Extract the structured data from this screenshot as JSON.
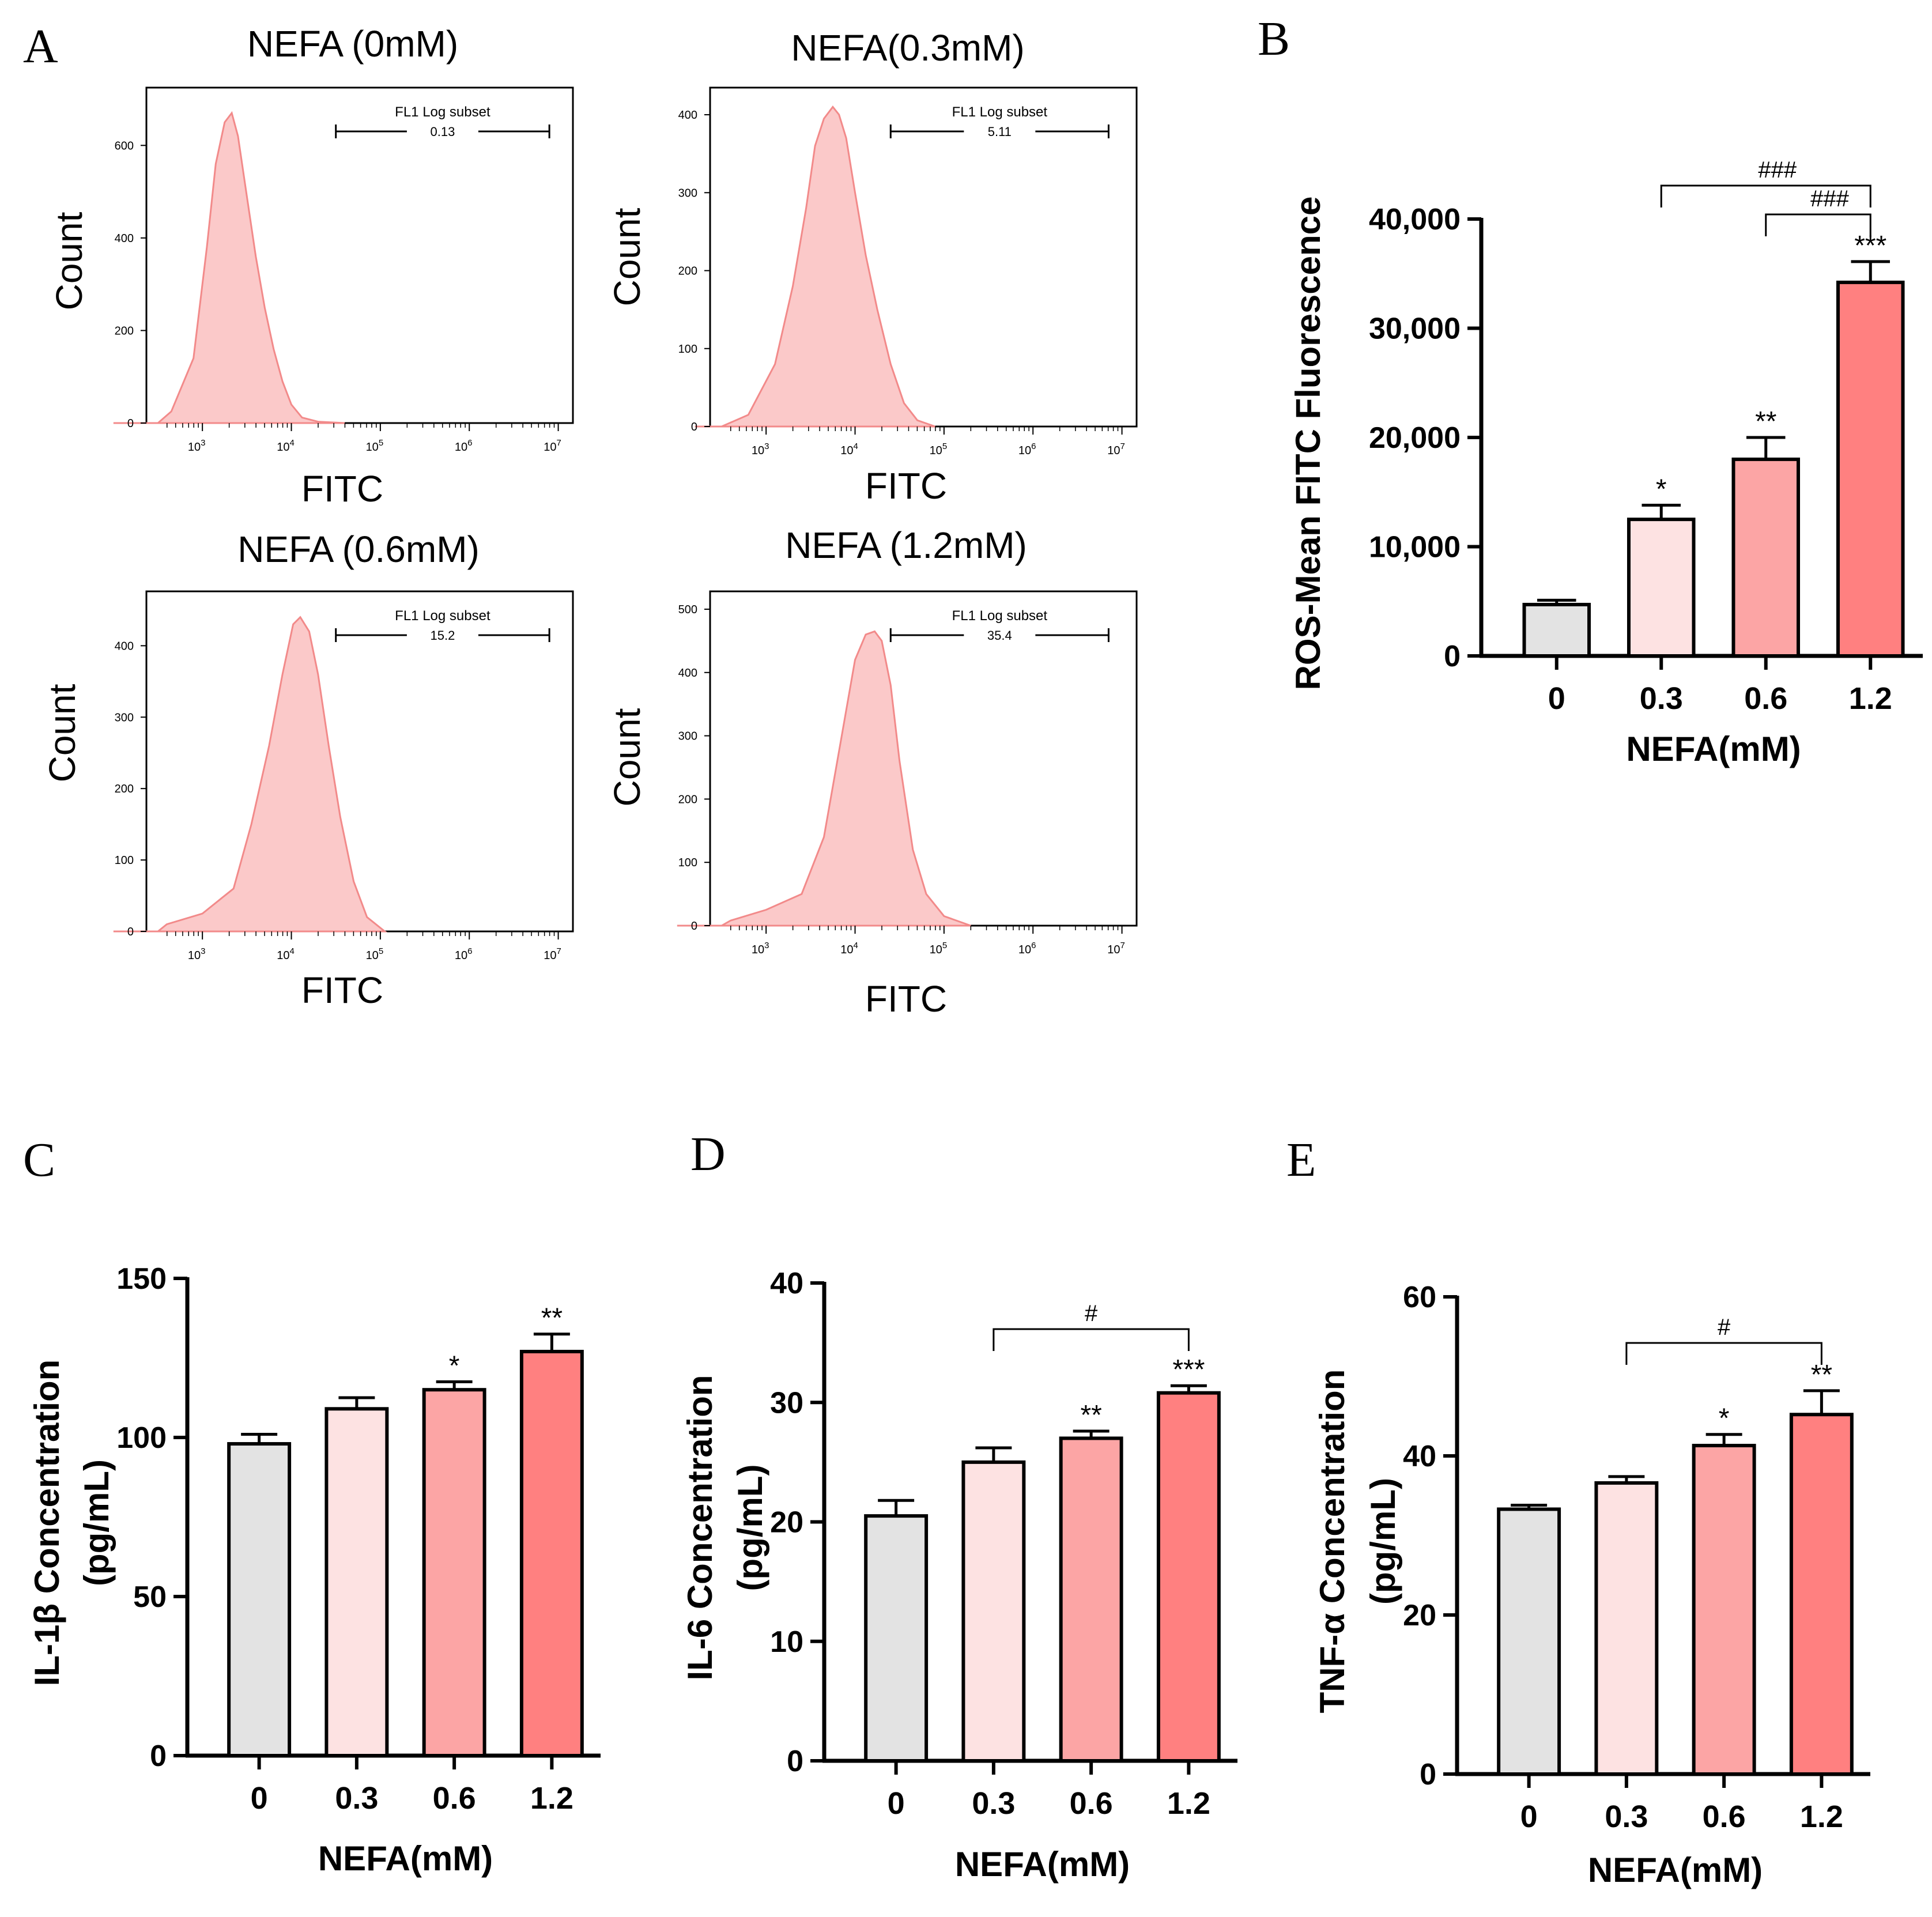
{
  "figure": {
    "panel_labels": [
      "A",
      "B",
      "C",
      "D",
      "E"
    ]
  },
  "colors": {
    "histogram_fill": "#fbc9c9",
    "histogram_line": "#f28a8a",
    "bar_fills": [
      "#e3e3e3",
      "#fde2e2",
      "#fca5a5",
      "#ff8080"
    ],
    "ink": "#000000"
  },
  "chart_data": [
    {
      "panel": "A",
      "type": "area",
      "title": "NEFA (0mM)",
      "xlabel": "FITC",
      "ylabel": "Count",
      "x_scale": "log",
      "x_tick_labels": [
        "10^3",
        "10^4",
        "10^5",
        "10^6",
        "10^7"
      ],
      "ylim": [
        0,
        700
      ],
      "y_ticks": [
        0,
        200,
        400,
        600
      ],
      "gate": {
        "label": "FL1 Log subset",
        "value": "0.13",
        "x_range_log10": [
          4.5,
          6.9
        ]
      },
      "x_log10": [
        2.0,
        2.65,
        2.9,
        3.05,
        3.15,
        3.25,
        3.33,
        3.4,
        3.5,
        3.6,
        3.7,
        3.8,
        3.9,
        4.0,
        4.12,
        4.3,
        4.6
      ],
      "y": [
        0,
        25,
        140,
        380,
        560,
        650,
        670,
        620,
        490,
        360,
        250,
        160,
        90,
        40,
        12,
        3,
        0
      ]
    },
    {
      "panel": "A",
      "type": "area",
      "title": "NEFA(0.3mM)",
      "xlabel": "FITC",
      "ylabel": "Count",
      "x_scale": "log",
      "x_tick_labels": [
        "10^3",
        "10^4",
        "10^5",
        "10^6",
        "10^7"
      ],
      "ylim": [
        0,
        420
      ],
      "y_ticks": [
        0,
        100,
        200,
        300,
        400
      ],
      "gate": {
        "label": "FL1 Log subset",
        "value": "5.11",
        "x_range_log10": [
          4.4,
          6.85
        ]
      },
      "x_log10": [
        2.2,
        2.8,
        3.1,
        3.3,
        3.45,
        3.55,
        3.65,
        3.75,
        3.82,
        3.9,
        4.0,
        4.12,
        4.25,
        4.4,
        4.55,
        4.7,
        4.9
      ],
      "y": [
        0,
        15,
        80,
        180,
        280,
        360,
        395,
        410,
        400,
        370,
        300,
        220,
        150,
        80,
        30,
        8,
        0
      ]
    },
    {
      "panel": "A",
      "type": "area",
      "title": "NEFA (0.6mM)",
      "xlabel": "FITC",
      "ylabel": "Count",
      "x_scale": "log",
      "x_tick_labels": [
        "10^3",
        "10^4",
        "10^5",
        "10^6",
        "10^7"
      ],
      "ylim": [
        0,
        460
      ],
      "y_ticks": [
        0,
        100,
        200,
        300,
        400
      ],
      "gate": {
        "label": "FL1 Log subset",
        "value": "15.2",
        "x_range_log10": [
          4.5,
          6.9
        ]
      },
      "x_log10": [
        2.0,
        2.6,
        3.0,
        3.35,
        3.55,
        3.75,
        3.9,
        4.02,
        4.1,
        4.2,
        4.3,
        4.42,
        4.55,
        4.7,
        4.85,
        5.05
      ],
      "y": [
        0,
        10,
        25,
        60,
        150,
        260,
        360,
        430,
        440,
        420,
        360,
        260,
        160,
        70,
        20,
        0
      ]
    },
    {
      "panel": "A",
      "type": "area",
      "title": "NEFA (1.2mM)",
      "xlabel": "FITC",
      "ylabel": "Count",
      "x_scale": "log",
      "x_tick_labels": [
        "10^3",
        "10^4",
        "10^5",
        "10^6",
        "10^7"
      ],
      "ylim": [
        0,
        510
      ],
      "y_ticks": [
        0,
        100,
        200,
        300,
        400,
        500
      ],
      "gate": {
        "label": "FL1 Log subset",
        "value": "35.4",
        "x_range_log10": [
          4.4,
          6.85
        ]
      },
      "x_log10": [
        2.0,
        2.6,
        3.0,
        3.4,
        3.65,
        3.85,
        4.0,
        4.12,
        4.22,
        4.3,
        4.4,
        4.5,
        4.65,
        4.8,
        5.0,
        5.3
      ],
      "y": [
        0,
        8,
        25,
        50,
        140,
        300,
        420,
        460,
        465,
        450,
        380,
        260,
        120,
        50,
        15,
        0
      ]
    },
    {
      "panel": "B",
      "type": "bar",
      "categories": [
        "0",
        "0.3",
        "0.6",
        "1.2"
      ],
      "values": [
        4700,
        12500,
        18000,
        34200
      ],
      "errors": [
        400,
        1300,
        2000,
        1900
      ],
      "significance": [
        "",
        "*",
        "**",
        "***"
      ],
      "brackets": [
        {
          "from": 1,
          "to": 3,
          "label": "###"
        },
        {
          "from": 2,
          "to": 3,
          "label": "###"
        }
      ],
      "xlabel": "NEFA(mM)",
      "ylabel": "ROS-Mean FITC Fluorescence",
      "ylim": [
        0,
        40000
      ],
      "y_ticks": [
        0,
        10000,
        20000,
        30000,
        40000
      ],
      "y_tick_labels": [
        "0",
        "10,000",
        "20,000",
        "30,000",
        "40,000"
      ]
    },
    {
      "panel": "C",
      "type": "bar",
      "categories": [
        "0",
        "0.3",
        "0.6",
        "1.2"
      ],
      "values": [
        98,
        109,
        115,
        127
      ],
      "errors": [
        3,
        3.5,
        2.5,
        5.5
      ],
      "significance": [
        "",
        "",
        "*",
        "**"
      ],
      "brackets": [],
      "xlabel": "NEFA(mM)",
      "ylabel": "IL-1β Concentration",
      "ylabel2": "(pg/mL)",
      "ylim": [
        0,
        150
      ],
      "y_ticks": [
        0,
        50,
        100,
        150
      ],
      "y_tick_labels": [
        "0",
        "50",
        "100",
        "150"
      ]
    },
    {
      "panel": "D",
      "type": "bar",
      "categories": [
        "0",
        "0.3",
        "0.6",
        "1.2"
      ],
      "values": [
        20.5,
        25.0,
        27.0,
        30.8
      ],
      "errors": [
        1.3,
        1.2,
        0.6,
        0.6
      ],
      "significance": [
        "",
        "",
        "**",
        "***"
      ],
      "brackets": [
        {
          "from": 1,
          "to": 3,
          "label": "#"
        }
      ],
      "xlabel": "NEFA(mM)",
      "ylabel": "IL-6 Concentration",
      "ylabel2": "(pg/mL)",
      "ylim": [
        0,
        40
      ],
      "y_ticks": [
        0,
        10,
        20,
        30,
        40
      ],
      "y_tick_labels": [
        "0",
        "10",
        "20",
        "30",
        "40"
      ]
    },
    {
      "panel": "E",
      "type": "bar",
      "categories": [
        "0",
        "0.3",
        "0.6",
        "1.2"
      ],
      "values": [
        33.3,
        36.6,
        41.3,
        45.2
      ],
      "errors": [
        0.5,
        0.8,
        1.4,
        3.0
      ],
      "significance": [
        "",
        "",
        "*",
        "**"
      ],
      "brackets": [
        {
          "from": 1,
          "to": 3,
          "label": "#"
        }
      ],
      "xlabel": "NEFA(mM)",
      "ylabel": "TNF-α Concentration",
      "ylabel2": "(pg/mL)",
      "ylim": [
        0,
        60
      ],
      "y_ticks": [
        0,
        20,
        40,
        60
      ],
      "y_tick_labels": [
        "0",
        "20",
        "40",
        "60"
      ]
    }
  ]
}
